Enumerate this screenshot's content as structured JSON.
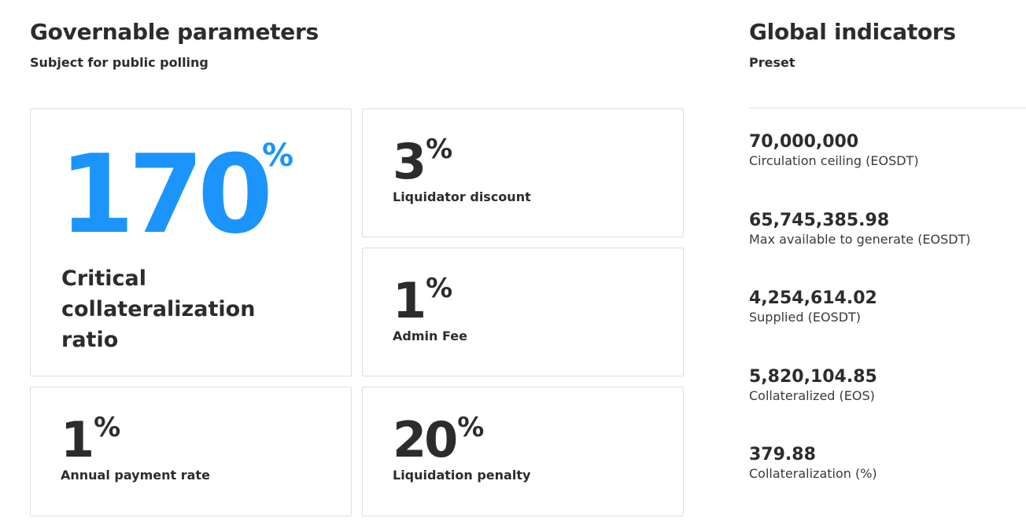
{
  "governable": {
    "title": "Governable parameters",
    "subtitle": "Subject for public polling",
    "featured": {
      "value": "170",
      "unit": "%",
      "label": "Critical collateralization ratio",
      "accent_color": "#1b95fb"
    },
    "params": [
      {
        "value": "3",
        "unit": "%",
        "label": "Liquidator discount"
      },
      {
        "value": "1",
        "unit": "%",
        "label": "Admin Fee"
      },
      {
        "value": "1",
        "unit": "%",
        "label": "Annual payment rate"
      },
      {
        "value": "20",
        "unit": "%",
        "label": "Liquidation penalty"
      }
    ]
  },
  "global": {
    "title": "Global indicators",
    "subtitle": "Preset",
    "indicators": [
      {
        "value": "70,000,000",
        "label": "Circulation ceiling (EOSDT)"
      },
      {
        "value": "65,745,385.98",
        "label": "Max available to generate (EOSDT)"
      },
      {
        "value": "4,254,614.02",
        "label": "Supplied (EOSDT)"
      },
      {
        "value": "5,820,104.85",
        "label": "Collateralized (EOS)"
      },
      {
        "value": "379.88",
        "label": "Collateralization (%)"
      }
    ]
  },
  "colors": {
    "text": "#2c2c2e",
    "accent": "#1b95fb",
    "card_border": "#dcdde8"
  }
}
